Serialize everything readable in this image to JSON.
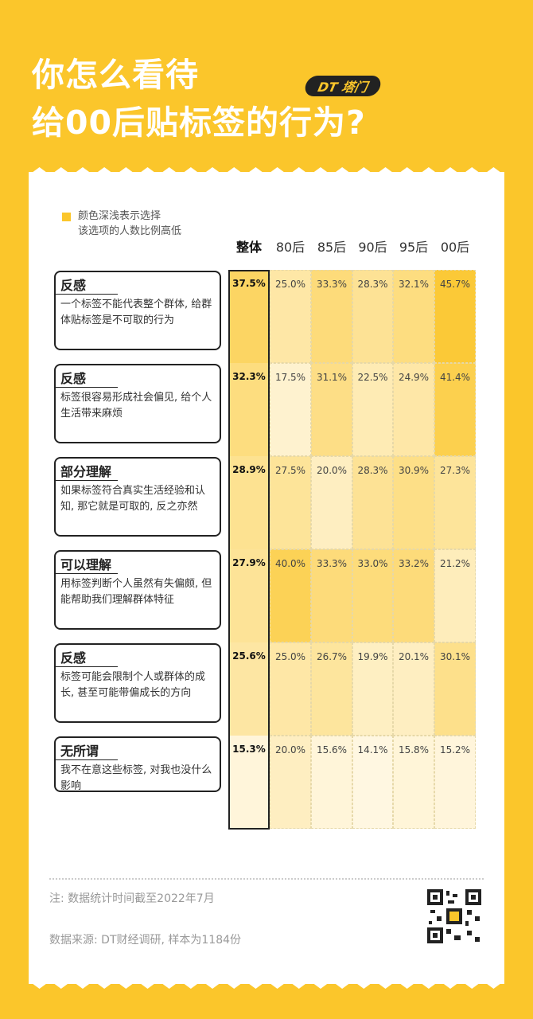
{
  "title": {
    "line1": "你怎么看待",
    "line2": "给00后贴标签的行为?"
  },
  "logo": "DT 塔门",
  "legend": "颜色深浅表示选择\n该选项的人数比例高低",
  "chart_data": {
    "type": "heatmap",
    "columns": [
      "整体",
      "80后",
      "85后",
      "90后",
      "95后",
      "00后"
    ],
    "rows": [
      {
        "tag": "反感",
        "desc": "一个标签不能代表整个群体, 给群体贴标签是不可取的行为",
        "values": [
          37.5,
          25.0,
          33.3,
          28.3,
          32.1,
          45.7
        ]
      },
      {
        "tag": "反感",
        "desc": "标签很容易形成社会偏见, 给个人生活带来麻烦",
        "values": [
          32.3,
          17.5,
          31.1,
          22.5,
          24.9,
          41.4
        ]
      },
      {
        "tag": "部分理解",
        "desc": "如果标签符合真实生活经验和认知, 那它就是可取的, 反之亦然",
        "values": [
          28.9,
          27.5,
          20.0,
          28.3,
          30.9,
          27.3
        ]
      },
      {
        "tag": "可以理解",
        "desc": "用标签判断个人虽然有失偏颇, 但能帮助我们理解群体特征",
        "values": [
          27.9,
          40.0,
          33.3,
          33.0,
          33.2,
          21.2
        ]
      },
      {
        "tag": "反感",
        "desc": "标签可能会限制个人或群体的成长, 甚至可能带偏成长的方向",
        "values": [
          25.6,
          25.0,
          26.7,
          19.9,
          20.1,
          30.1
        ]
      },
      {
        "tag": "无所谓",
        "desc": "我不在意这些标签, 对我也没什么影响",
        "values": [
          15.3,
          20.0,
          15.6,
          14.1,
          15.8,
          15.2
        ]
      }
    ],
    "value_suffix": "%"
  },
  "note": "注: 数据统计时间截至2022年7月",
  "source": "数据来源: DT财经调研, 样本为1184份",
  "colors": {
    "accent": "#FBC62B",
    "dark": "#222222"
  }
}
